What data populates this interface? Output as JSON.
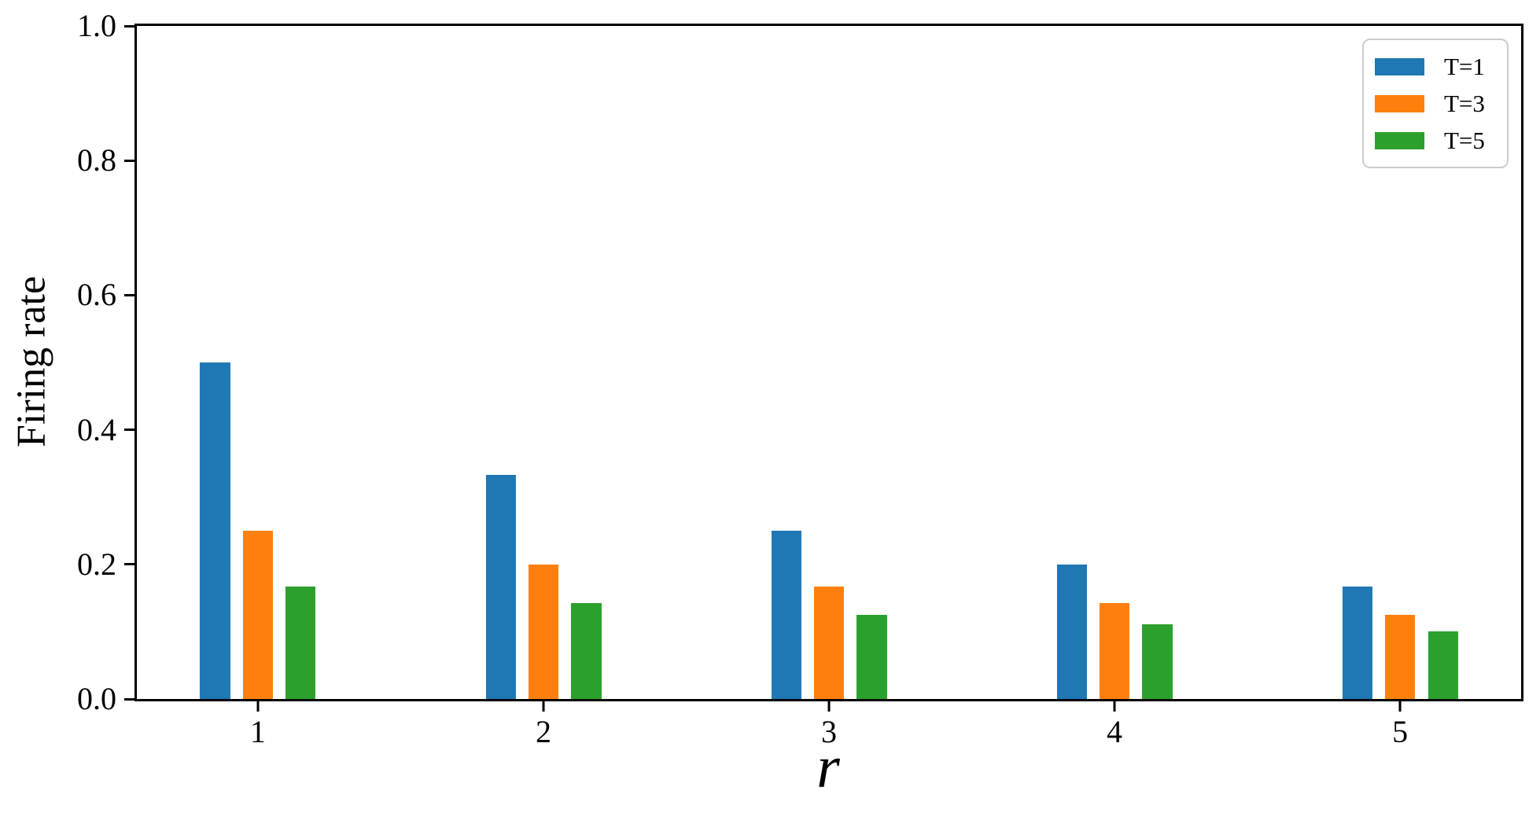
{
  "chart_data": {
    "type": "bar",
    "title": "",
    "xlabel": "r",
    "ylabel": "Firing rate",
    "x": [
      1,
      2,
      3,
      4,
      5
    ],
    "xlim": [
      0.576,
      5.424
    ],
    "ylim": [
      0.0,
      1.0
    ],
    "grid": false,
    "bar_width": 0.105,
    "xticks": {
      "values": [
        1,
        2,
        3,
        4,
        5
      ],
      "labels": [
        "1",
        "2",
        "3",
        "4",
        "5"
      ]
    },
    "yticks": {
      "values": [
        0.0,
        0.2,
        0.4,
        0.6,
        0.8,
        1.0
      ],
      "labels": [
        "0.0",
        "0.2",
        "0.4",
        "0.6",
        "0.8",
        "1.0"
      ]
    },
    "series": [
      {
        "name": "T=1",
        "color": "#1f77b4",
        "offset": -0.15,
        "values": [
          0.5,
          0.3333,
          0.25,
          0.2,
          0.1667
        ]
      },
      {
        "name": "T=3",
        "color": "#ff7f0e",
        "offset": 0.0,
        "values": [
          0.25,
          0.2,
          0.1667,
          0.1429,
          0.125
        ]
      },
      {
        "name": "T=5",
        "color": "#2ca02c",
        "offset": 0.15,
        "values": [
          0.1667,
          0.1429,
          0.125,
          0.1111,
          0.1
        ]
      }
    ],
    "legend": {
      "position": "upper right",
      "labels": [
        "T=1",
        "T=3",
        "T=5"
      ]
    },
    "colors": {
      "background": "#ffffff",
      "spines": "#000000",
      "legend_border": "#cccccc"
    }
  }
}
